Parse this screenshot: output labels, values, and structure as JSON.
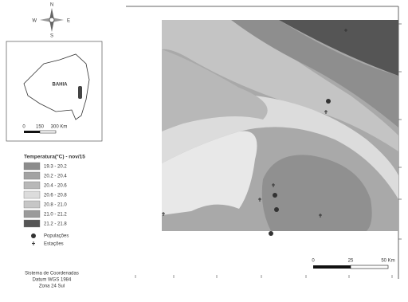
{
  "inset": {
    "compass": {
      "north": "N",
      "south": "S",
      "east": "E",
      "west": "W"
    },
    "state_label": "BAHIA",
    "scale": [
      "0",
      "150",
      "300 Km"
    ]
  },
  "legend": {
    "title": "Temperatura(°C) - nov/15",
    "classes": [
      {
        "label": "19.3 - 20.2",
        "color": "#8c8c8c"
      },
      {
        "label": "20.2 - 20.4",
        "color": "#a2a2a2"
      },
      {
        "label": "20.4 - 20.6",
        "color": "#b8b8b8"
      },
      {
        "label": "20.6 - 20.8",
        "color": "#dcdcdc"
      },
      {
        "label": "20.8 - 21.0",
        "color": "#c6c6c6"
      },
      {
        "label": "21.0 - 21.2",
        "color": "#9a9a9a"
      },
      {
        "label": "21.2 - 21.8",
        "color": "#555555"
      }
    ],
    "symbols": [
      "Populações",
      "Estações"
    ]
  },
  "coordinate_note": [
    "Sistema de Coordenadas",
    "Datum WGS 1984",
    "Zona 24 Sul"
  ],
  "scale_bar": [
    "0",
    "25",
    "50 Km"
  ]
}
